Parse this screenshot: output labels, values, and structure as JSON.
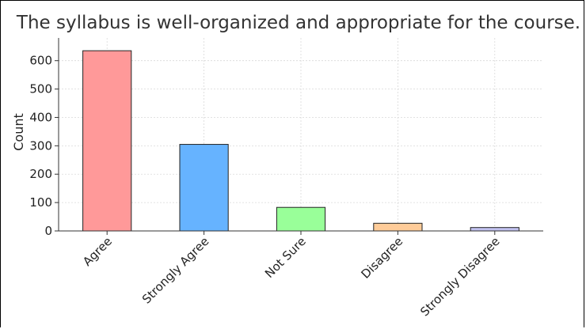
{
  "chart_data": {
    "type": "bar",
    "title": "The syllabus is well-organized and appropriate for the course.",
    "xlabel": "",
    "ylabel": "Count",
    "categories": [
      "Agree",
      "Strongly Agree",
      "Not Sure",
      "Disagree",
      "Strongly Disagree"
    ],
    "values": [
      635,
      305,
      83,
      27,
      12
    ],
    "colors": [
      "#ff9999",
      "#66b3ff",
      "#99ff99",
      "#ffcc99",
      "#c2c2f0"
    ],
    "ylim": [
      0,
      680
    ],
    "yticks": [
      0,
      100,
      200,
      300,
      400,
      500,
      600
    ],
    "grid": true,
    "legend": "none"
  }
}
